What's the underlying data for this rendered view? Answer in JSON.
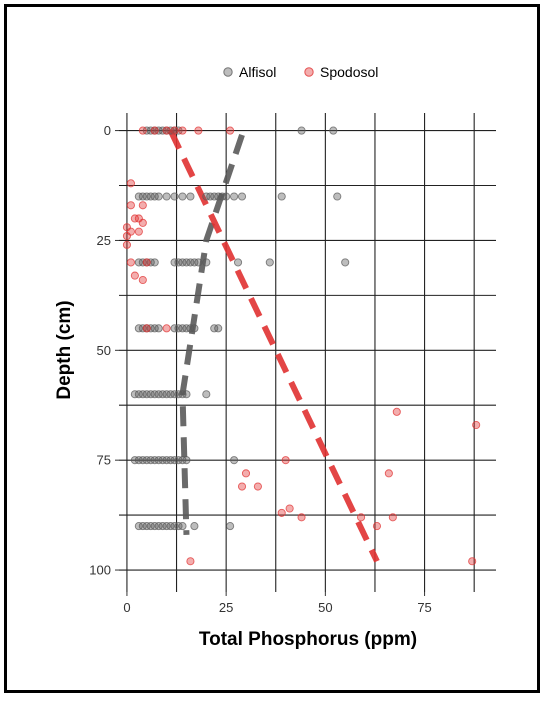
{
  "chart_data": {
    "type": "scatter",
    "xlabel": "Total Phosphorus (ppm)",
    "ylabel": "Depth (cm)",
    "xlim": [
      -2,
      93
    ],
    "ylim": [
      105,
      -4
    ],
    "y_reversed": true,
    "xticks": [
      0,
      25,
      50,
      75
    ],
    "yticks": [
      0,
      25,
      50,
      75,
      100
    ],
    "grid": true,
    "legend_position": "top",
    "series": [
      {
        "name": "Alfisol",
        "color": "#5a5a5a",
        "points": [
          [
            5,
            0
          ],
          [
            6,
            0
          ],
          [
            7,
            0
          ],
          [
            8,
            0
          ],
          [
            9,
            0
          ],
          [
            10,
            0
          ],
          [
            11,
            0
          ],
          [
            12,
            0
          ],
          [
            13,
            0
          ],
          [
            44,
            0
          ],
          [
            52,
            0
          ],
          [
            3,
            15
          ],
          [
            4,
            15
          ],
          [
            5,
            15
          ],
          [
            6,
            15
          ],
          [
            7,
            15
          ],
          [
            8,
            15
          ],
          [
            10,
            15
          ],
          [
            12,
            15
          ],
          [
            14,
            15
          ],
          [
            16,
            15
          ],
          [
            20,
            15
          ],
          [
            21,
            15
          ],
          [
            22,
            15
          ],
          [
            23,
            15
          ],
          [
            24,
            15
          ],
          [
            25,
            15
          ],
          [
            27,
            15
          ],
          [
            29,
            15
          ],
          [
            39,
            15
          ],
          [
            53,
            15
          ],
          [
            3,
            30
          ],
          [
            4,
            30
          ],
          [
            5,
            30
          ],
          [
            6,
            30
          ],
          [
            7,
            30
          ],
          [
            12,
            30
          ],
          [
            13,
            30
          ],
          [
            14,
            30
          ],
          [
            15,
            30
          ],
          [
            16,
            30
          ],
          [
            17,
            30
          ],
          [
            18,
            30
          ],
          [
            20,
            30
          ],
          [
            28,
            30
          ],
          [
            36,
            30
          ],
          [
            55,
            30
          ],
          [
            3,
            45
          ],
          [
            4,
            45
          ],
          [
            5,
            45
          ],
          [
            6,
            45
          ],
          [
            7,
            45
          ],
          [
            8,
            45
          ],
          [
            12,
            45
          ],
          [
            13,
            45
          ],
          [
            14,
            45
          ],
          [
            15,
            45
          ],
          [
            16,
            45
          ],
          [
            17,
            45
          ],
          [
            22,
            45
          ],
          [
            23,
            45
          ],
          [
            2,
            60
          ],
          [
            3,
            60
          ],
          [
            4,
            60
          ],
          [
            5,
            60
          ],
          [
            6,
            60
          ],
          [
            7,
            60
          ],
          [
            8,
            60
          ],
          [
            9,
            60
          ],
          [
            10,
            60
          ],
          [
            11,
            60
          ],
          [
            12,
            60
          ],
          [
            13,
            60
          ],
          [
            14,
            60
          ],
          [
            15,
            60
          ],
          [
            20,
            60
          ],
          [
            2,
            75
          ],
          [
            3,
            75
          ],
          [
            4,
            75
          ],
          [
            5,
            75
          ],
          [
            6,
            75
          ],
          [
            7,
            75
          ],
          [
            8,
            75
          ],
          [
            9,
            75
          ],
          [
            10,
            75
          ],
          [
            11,
            75
          ],
          [
            12,
            75
          ],
          [
            13,
            75
          ],
          [
            14,
            75
          ],
          [
            15,
            75
          ],
          [
            27,
            75
          ],
          [
            3,
            90
          ],
          [
            4,
            90
          ],
          [
            5,
            90
          ],
          [
            6,
            90
          ],
          [
            7,
            90
          ],
          [
            8,
            90
          ],
          [
            9,
            90
          ],
          [
            10,
            90
          ],
          [
            11,
            90
          ],
          [
            12,
            90
          ],
          [
            13,
            90
          ],
          [
            14,
            90
          ],
          [
            17,
            90
          ],
          [
            26,
            90
          ]
        ],
        "trend": [
          [
            29,
            1
          ],
          [
            20,
            25
          ],
          [
            14,
            60
          ],
          [
            15,
            92
          ]
        ]
      },
      {
        "name": "Spodosol",
        "color": "#e03131",
        "points": [
          [
            4,
            0
          ],
          [
            7,
            0
          ],
          [
            10,
            0
          ],
          [
            12,
            0
          ],
          [
            14,
            0
          ],
          [
            18,
            0
          ],
          [
            26,
            0
          ],
          [
            1,
            12
          ],
          [
            1,
            17
          ],
          [
            4,
            17
          ],
          [
            2,
            20
          ],
          [
            3,
            20
          ],
          [
            4,
            21
          ],
          [
            0,
            22
          ],
          [
            1,
            23
          ],
          [
            3,
            23
          ],
          [
            0,
            24
          ],
          [
            0,
            26
          ],
          [
            1,
            30
          ],
          [
            5,
            30
          ],
          [
            2,
            33
          ],
          [
            4,
            34
          ],
          [
            5,
            45
          ],
          [
            10,
            45
          ],
          [
            68,
            64
          ],
          [
            88,
            67
          ],
          [
            40,
            75
          ],
          [
            30,
            78
          ],
          [
            66,
            78
          ],
          [
            29,
            81
          ],
          [
            33,
            81
          ],
          [
            41,
            86
          ],
          [
            39,
            87
          ],
          [
            44,
            88
          ],
          [
            59,
            88
          ],
          [
            67,
            88
          ],
          [
            63,
            90
          ],
          [
            16,
            98
          ],
          [
            87,
            98
          ]
        ],
        "trend": [
          [
            11,
            0
          ],
          [
            63,
            98
          ]
        ]
      }
    ]
  }
}
